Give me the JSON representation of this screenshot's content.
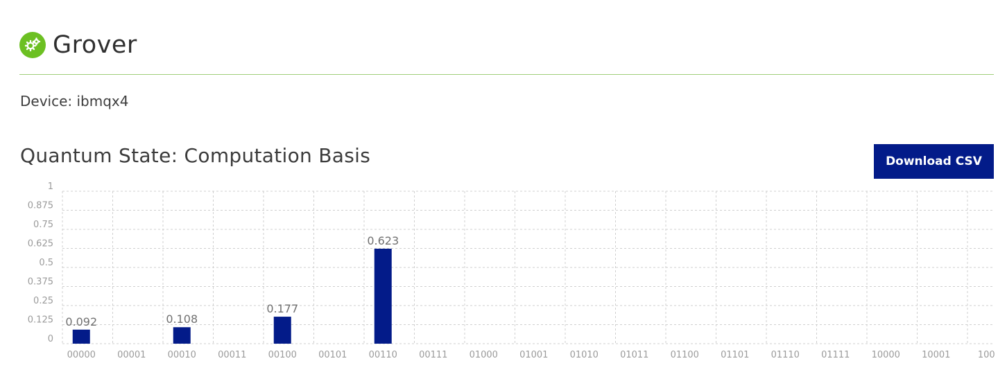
{
  "header": {
    "title": "Grover",
    "icon": "gears-icon",
    "icon_color": "#6cc022"
  },
  "device": {
    "text": "Device: ibmqx4"
  },
  "section": {
    "title": "Quantum State: Computation Basis"
  },
  "toolbar": {
    "download_label": "Download CSV",
    "download_color": "#031b89"
  },
  "chart_data": {
    "type": "bar",
    "title": "",
    "xlabel": "",
    "ylabel": "",
    "ylim": [
      0,
      1
    ],
    "yticks": [
      "1",
      "0.875",
      "0.75",
      "0.625",
      "0.5",
      "0.375",
      "0.25",
      "0.125",
      "0"
    ],
    "grid": true,
    "bar_color": "#031b89",
    "categories": [
      "00000",
      "00001",
      "00010",
      "00011",
      "00100",
      "00101",
      "00110",
      "00111",
      "01000",
      "01001",
      "01010",
      "01011",
      "01100",
      "01101",
      "01110",
      "01111",
      "10000",
      "10001",
      "100"
    ],
    "values": [
      0.092,
      0,
      0.108,
      0,
      0.177,
      0,
      0.623,
      0,
      0,
      0,
      0,
      0,
      0,
      0,
      0,
      0,
      0,
      0,
      0
    ],
    "labels": [
      "0.092",
      "",
      "0.108",
      "",
      "0.177",
      "",
      "0.623",
      "",
      "",
      "",
      "",
      "",
      "",
      "",
      "",
      "",
      "",
      "",
      ""
    ]
  }
}
